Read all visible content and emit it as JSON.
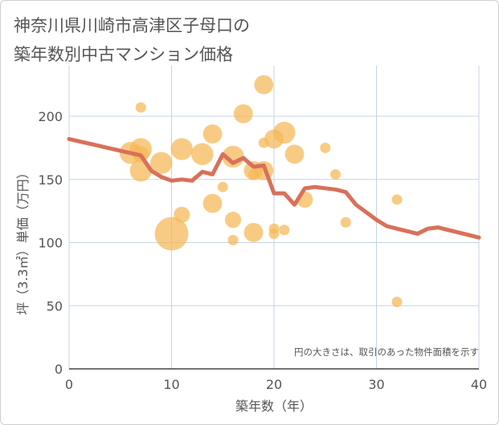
{
  "title": {
    "line1": "神奈川県川崎市高津区子母口の",
    "line2": "築年数別中古マンション価格"
  },
  "colors": {
    "bubble": "#f5b754",
    "line": "#d9705a",
    "grid": "#c5d3e4",
    "plot_bg": "#ffffff"
  },
  "chart_data": {
    "type": "scatter",
    "xlabel": "築年数（年）",
    "ylabel": "坪（3.3㎡）単価（万円）",
    "xlim": [
      0,
      40
    ],
    "ylim": [
      0,
      240
    ],
    "xticks": [
      0,
      10,
      20,
      30,
      40
    ],
    "yticks": [
      0,
      50,
      100,
      150,
      200
    ],
    "grid": true,
    "note": "円の大きさは、取引のあった物件面積を示す",
    "bubbles": [
      {
        "x": 6,
        "y": 171,
        "size": 3
      },
      {
        "x": 7,
        "y": 207,
        "size": 1
      },
      {
        "x": 7,
        "y": 174,
        "size": 3
      },
      {
        "x": 7,
        "y": 170,
        "size": 2
      },
      {
        "x": 7,
        "y": 157,
        "size": 3
      },
      {
        "x": 9,
        "y": 163,
        "size": 3
      },
      {
        "x": 10,
        "y": 107,
        "size": 5
      },
      {
        "x": 11,
        "y": 174,
        "size": 3
      },
      {
        "x": 11,
        "y": 122,
        "size": 2
      },
      {
        "x": 13,
        "y": 170,
        "size": 3
      },
      {
        "x": 14,
        "y": 186,
        "size": 2.5
      },
      {
        "x": 14,
        "y": 131,
        "size": 2.5
      },
      {
        "x": 15,
        "y": 144,
        "size": 1
      },
      {
        "x": 16,
        "y": 168,
        "size": 3
      },
      {
        "x": 16,
        "y": 118,
        "size": 2
      },
      {
        "x": 16,
        "y": 102,
        "size": 1
      },
      {
        "x": 17,
        "y": 202,
        "size": 2.5
      },
      {
        "x": 18,
        "y": 157,
        "size": 2.5
      },
      {
        "x": 18,
        "y": 154,
        "size": 1
      },
      {
        "x": 18,
        "y": 108,
        "size": 2.5
      },
      {
        "x": 19,
        "y": 225,
        "size": 2.5
      },
      {
        "x": 19,
        "y": 179,
        "size": 1
      },
      {
        "x": 19,
        "y": 157,
        "size": 2.5
      },
      {
        "x": 20,
        "y": 182,
        "size": 2.5
      },
      {
        "x": 20,
        "y": 111,
        "size": 1
      },
      {
        "x": 20,
        "y": 107,
        "size": 1
      },
      {
        "x": 21,
        "y": 187,
        "size": 3
      },
      {
        "x": 21,
        "y": 110,
        "size": 1
      },
      {
        "x": 22,
        "y": 170,
        "size": 2.5
      },
      {
        "x": 23,
        "y": 134,
        "size": 2
      },
      {
        "x": 25,
        "y": 175,
        "size": 1
      },
      {
        "x": 26,
        "y": 154,
        "size": 1
      },
      {
        "x": 27,
        "y": 116,
        "size": 1
      },
      {
        "x": 32,
        "y": 134,
        "size": 1
      },
      {
        "x": 32,
        "y": 53,
        "size": 1
      }
    ],
    "trend": {
      "x": [
        0,
        7,
        8,
        9,
        10,
        11,
        12,
        13,
        14,
        15,
        16,
        17,
        18,
        19,
        20,
        21,
        22,
        23,
        24,
        25,
        26,
        27,
        28,
        30,
        31,
        32,
        33,
        34,
        35,
        36,
        37,
        40
      ],
      "y": [
        182,
        169,
        157,
        152,
        149,
        150,
        149,
        156,
        154,
        170,
        163,
        167,
        160,
        161,
        139,
        139,
        130,
        143,
        144,
        143,
        142,
        140,
        130,
        118,
        113,
        111,
        109,
        107,
        111,
        112,
        110,
        104
      ]
    }
  }
}
